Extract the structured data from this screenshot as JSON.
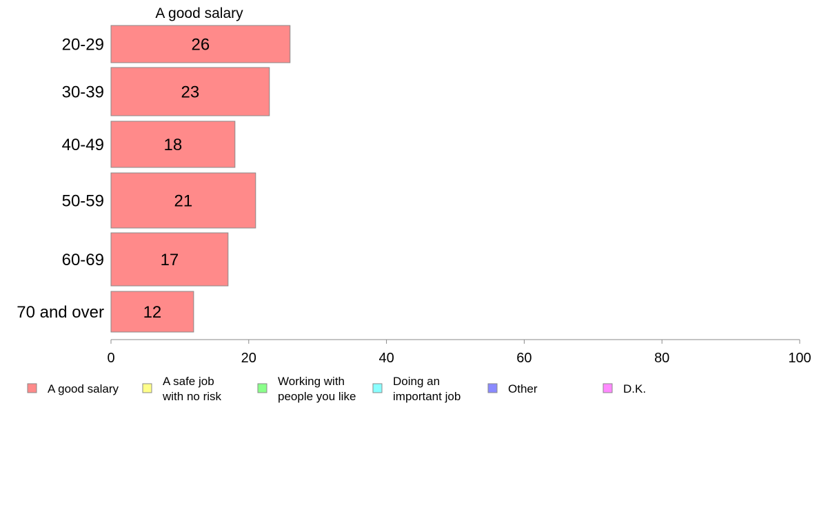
{
  "chart_data": {
    "type": "bar",
    "orientation": "horizontal",
    "series_title": "A good salary",
    "categories": [
      "20-29",
      "30-39",
      "40-49",
      "50-59",
      "60-69",
      "70 and over"
    ],
    "series": [
      {
        "name": "A good salary",
        "values": [
          26,
          23,
          18,
          21,
          17,
          12
        ],
        "color": "#ff8a8a"
      }
    ],
    "xlim": [
      0,
      100
    ],
    "xticks": [
      0,
      20,
      40,
      60,
      80,
      100
    ],
    "grid": false,
    "legend_position": "bottom",
    "legend": [
      {
        "lines": [
          "A good salary"
        ],
        "color": "#ff8a8a"
      },
      {
        "lines": [
          "A safe job",
          "with no risk"
        ],
        "color": "#ffff8a"
      },
      {
        "lines": [
          "Working with",
          "people you like"
        ],
        "color": "#8aff8a"
      },
      {
        "lines": [
          "Doing an",
          "important job"
        ],
        "color": "#8affff"
      },
      {
        "lines": [
          "Other"
        ],
        "color": "#8a8aff"
      },
      {
        "lines": [
          "D.K."
        ],
        "color": "#ff8aff"
      }
    ]
  }
}
